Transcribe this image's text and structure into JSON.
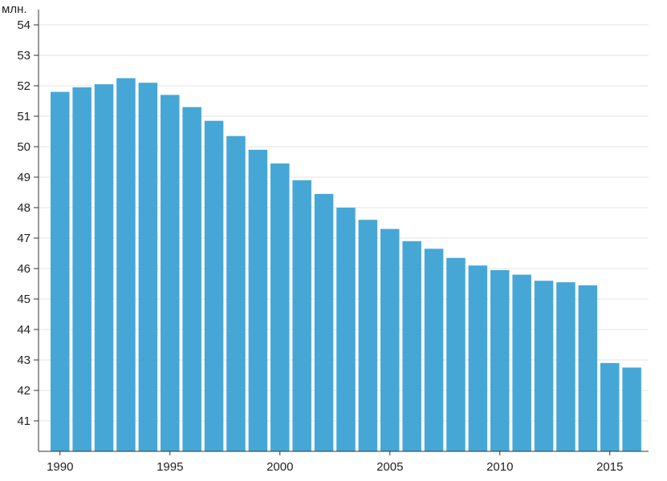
{
  "chart_data": {
    "type": "bar",
    "unit_label": "млн.",
    "x": [
      1990,
      1991,
      1992,
      1993,
      1994,
      1995,
      1996,
      1997,
      1998,
      1999,
      2000,
      2001,
      2002,
      2003,
      2004,
      2005,
      2006,
      2007,
      2008,
      2009,
      2010,
      2011,
      2012,
      2013,
      2014,
      2015,
      2016
    ],
    "values": [
      51.8,
      51.95,
      52.05,
      52.25,
      52.1,
      51.7,
      51.3,
      50.85,
      50.35,
      49.9,
      49.45,
      48.9,
      48.45,
      48.0,
      47.6,
      47.3,
      46.9,
      46.65,
      46.35,
      46.1,
      45.95,
      45.8,
      45.6,
      45.55,
      45.45,
      42.9,
      42.75
    ],
    "ylim": [
      40,
      54.5
    ],
    "y_ticks": [
      41,
      42,
      43,
      44,
      45,
      46,
      47,
      48,
      49,
      50,
      51,
      52,
      53,
      54
    ],
    "x_tick_labels": [
      1990,
      1995,
      2000,
      2005,
      2010,
      2015
    ],
    "grid": true,
    "bar_color": "#46a7d6",
    "grid_color": "#e3e3e3",
    "axis_color": "#333333"
  }
}
